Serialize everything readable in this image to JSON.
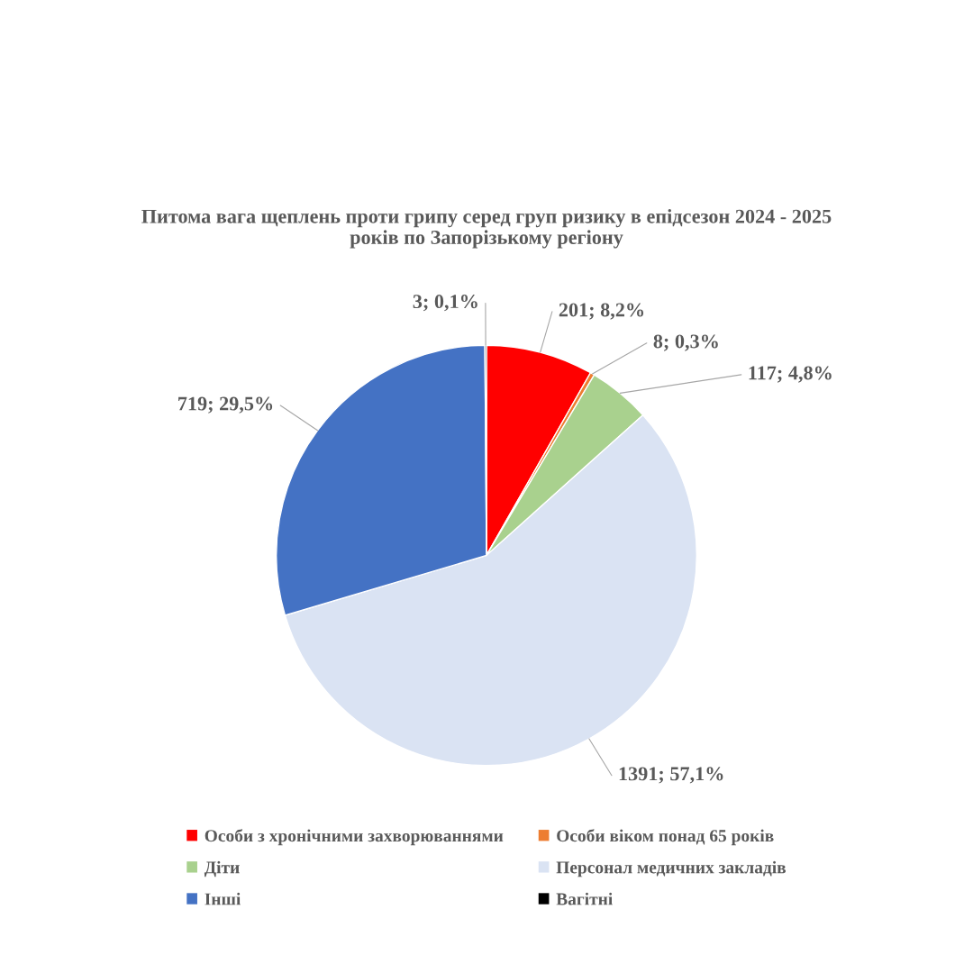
{
  "chart_data": {
    "type": "pie",
    "title": "Питома вага щеплень проти грипу серед груп ризику в епідсезон 2024 - 2025 років по Запорізькому регіону",
    "categories": [
      "Особи з хронічними захворюваннями",
      "Особи віком понад 65 років",
      "Діти",
      "Персонал медичних закладів",
      "Інші",
      "Вагітні"
    ],
    "values": [
      201,
      8,
      117,
      1391,
      719,
      3
    ],
    "colors": [
      "#ff0000",
      "#ed7d31",
      "#a9d18e",
      "#dae3f3",
      "#4472c4",
      "#000000"
    ],
    "value_labels": [
      "201; 8,2%",
      "8; 0,3%",
      "117; 4,8%",
      "1391; 57,1%",
      "719; 29,5%",
      "3; 0,1%"
    ],
    "legend": "bottom"
  }
}
